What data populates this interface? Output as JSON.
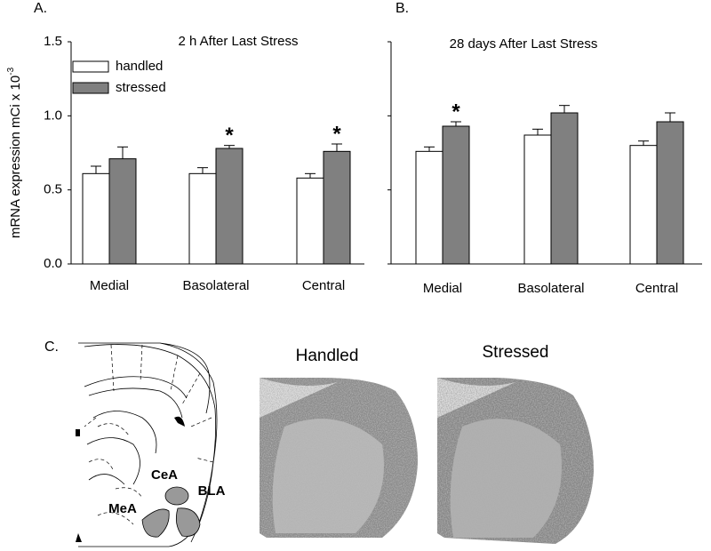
{
  "chart_data": [
    {
      "type": "bar",
      "panel": "A.",
      "title": "2 h After Last Stress",
      "ylabel": "mRNA expression mCi x 10",
      "ylabel_superscript": "-3",
      "categories": [
        "Medial",
        "Basolateral",
        "Central"
      ],
      "series": [
        {
          "name": "handled",
          "color": "#ffffff",
          "values": [
            0.61,
            0.61,
            0.58
          ],
          "errors": [
            0.05,
            0.04,
            0.03
          ]
        },
        {
          "name": "stressed",
          "color": "#808080",
          "values": [
            0.71,
            0.78,
            0.76
          ],
          "errors": [
            0.08,
            0.02,
            0.05
          ]
        }
      ],
      "annotations": [
        {
          "text": "*",
          "category": "Basolateral",
          "series": "stressed"
        },
        {
          "text": "*",
          "category": "Central",
          "series": "stressed"
        }
      ],
      "ylim": [
        0,
        1.5
      ],
      "yticks": [
        {
          "value": 0,
          "label": "0.0"
        },
        0.5,
        {
          "value": 1,
          "label": "1.0"
        },
        1.5
      ],
      "legend": "upper left",
      "grid": false
    },
    {
      "type": "bar",
      "panel": "B.",
      "title": "28 days After Last Stress",
      "categories": [
        "Medial",
        "Basolateral",
        "Central"
      ],
      "series": [
        {
          "name": "handled",
          "color": "#ffffff",
          "values": [
            0.76,
            0.87,
            0.8
          ],
          "errors": [
            0.03,
            0.04,
            0.03
          ]
        },
        {
          "name": "stressed",
          "color": "#808080",
          "values": [
            0.93,
            1.02,
            0.96
          ],
          "errors": [
            0.03,
            0.05,
            0.06
          ]
        }
      ],
      "annotations": [
        {
          "text": "*",
          "category": "Medial",
          "series": "stressed"
        }
      ],
      "ylim": [
        0,
        1.5
      ],
      "yticks": [
        0,
        0.5,
        1,
        1.5
      ],
      "legend": false,
      "grid": false
    }
  ],
  "panel_c": {
    "label": "C.",
    "atlas_labels": [
      "CeA",
      "BLA",
      "MeA"
    ],
    "images": [
      {
        "title": "Handled"
      },
      {
        "title": "Stressed"
      }
    ]
  }
}
